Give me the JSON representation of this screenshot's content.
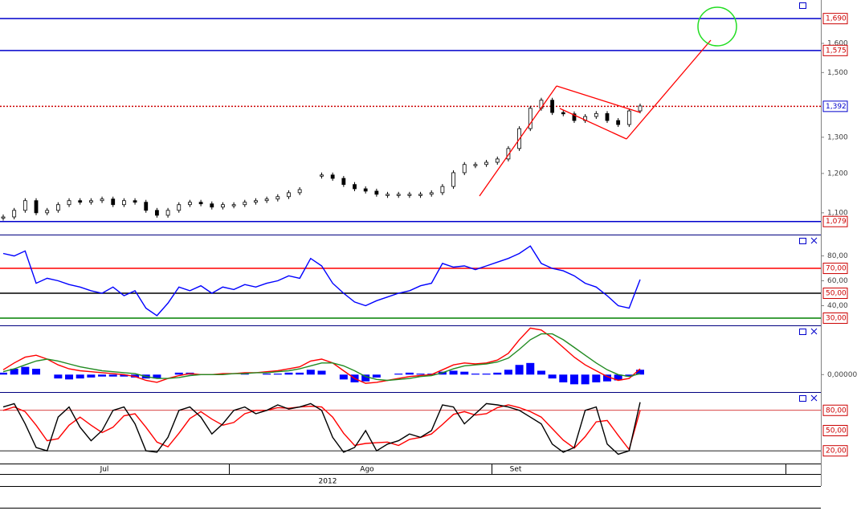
{
  "chart_data": [
    {
      "type": "price",
      "log_scale": true,
      "color": "#000000",
      "values": [
        1.09,
        1.106,
        1.13,
        1.1,
        1.106,
        1.12,
        1.13,
        1.126,
        1.13,
        1.134,
        1.12,
        1.13,
        1.126,
        1.106,
        1.094,
        1.106,
        1.12,
        1.126,
        1.122,
        1.114,
        1.12,
        1.12,
        1.126,
        1.13,
        1.134,
        1.14,
        1.15,
        1.158,
        null,
        1.196,
        1.187,
        1.171,
        1.16,
        1.154,
        1.146,
        1.146,
        1.146,
        1.146,
        1.146,
        1.15,
        1.166,
        1.202,
        1.224,
        1.224,
        1.23,
        1.239,
        1.268,
        1.325,
        1.386,
        1.411,
        1.373,
        1.369,
        1.349,
        1.361,
        1.37,
        1.349,
        1.337,
        1.378,
        1.393
      ],
      "ylim": [
        1.052,
        1.761
      ],
      "yticks": [
        {
          "value": 1.1,
          "label": "1,100"
        },
        {
          "value": 1.2,
          "label": "1,200"
        },
        {
          "value": 1.3,
          "label": "1,300"
        },
        {
          "value": 1.5,
          "label": "1,500"
        },
        {
          "value": 1.6,
          "label": "1,600"
        }
      ],
      "levels": [
        {
          "value": 1.69,
          "label": "1,690",
          "color": "#0000cc",
          "label_color": "#cc0000",
          "style": "solid"
        },
        {
          "value": 1.575,
          "label": "1,575",
          "color": "#0000cc",
          "label_color": "#cc0000",
          "style": "solid"
        },
        {
          "value": 1.392,
          "label": "1,392",
          "color": "#cc0000",
          "label_color": "#0000cc",
          "style": "dotted"
        },
        {
          "value": 1.079,
          "label": "1,079",
          "color": "#0000cc",
          "label_color": "#cc0000",
          "style": "solid"
        }
      ]
    },
    {
      "type": "line",
      "series": [
        {
          "color": "#0000ff",
          "values": [
            82,
            80,
            84,
            58,
            62,
            60,
            57,
            55,
            52,
            50,
            55,
            48,
            52,
            38,
            32,
            42,
            55,
            52,
            56,
            50,
            55,
            53,
            57,
            55,
            58,
            60,
            64,
            62,
            78,
            72,
            58,
            50,
            43,
            40,
            44,
            47,
            50,
            52,
            56,
            58,
            74,
            71,
            72,
            69,
            72,
            75,
            78,
            82,
            88,
            74,
            70,
            68,
            64,
            58,
            55,
            48,
            40,
            38,
            61
          ]
        }
      ],
      "ylim": [
        24.2,
        96.5
      ],
      "yticks": [
        {
          "value": 40,
          "label": "40,00"
        },
        {
          "value": 60,
          "label": "60,00"
        },
        {
          "value": 80,
          "label": "80,00"
        }
      ],
      "levels": [
        {
          "value": 70,
          "label": "70,00",
          "color": "#ff0000",
          "label_color": "#cc0000",
          "style": "solid"
        },
        {
          "value": 50,
          "label": "50,00",
          "color": "#000000",
          "label_color": "#cc0000",
          "style": "solid"
        },
        {
          "value": 30,
          "label": "30,00",
          "color": "#008000",
          "label_color": "#cc0000",
          "style": "solid"
        }
      ]
    },
    {
      "type": "macd",
      "series": [
        {
          "color": "#ff0000",
          "values": [
            0.005,
            0.012,
            0.018,
            0.02,
            0.016,
            0.01,
            0.006,
            0.004,
            0.003,
            0.002,
            0.001,
            0.0,
            -0.002,
            -0.006,
            -0.008,
            -0.004,
            -0.001,
            0.001,
            0.0,
            0.0,
            0.001,
            0.001,
            0.002,
            0.002,
            0.003,
            0.004,
            0.006,
            0.008,
            0.014,
            0.016,
            0.012,
            0.004,
            -0.004,
            -0.009,
            -0.008,
            -0.006,
            -0.004,
            -0.002,
            -0.001,
            0.0,
            0.005,
            0.01,
            0.012,
            0.011,
            0.012,
            0.015,
            0.022,
            0.036,
            0.048,
            0.046,
            0.038,
            0.028,
            0.018,
            0.01,
            0.004,
            -0.002,
            -0.006,
            -0.004,
            0.006
          ]
        },
        {
          "color": "#228b22",
          "values": [
            0.003,
            0.006,
            0.01,
            0.014,
            0.016,
            0.014,
            0.011,
            0.008,
            0.006,
            0.004,
            0.003,
            0.002,
            0.001,
            -0.002,
            -0.004,
            -0.004,
            -0.003,
            -0.001,
            0.0,
            0.0,
            0.0,
            0.001,
            0.001,
            0.002,
            0.002,
            0.003,
            0.004,
            0.006,
            0.009,
            0.012,
            0.012,
            0.009,
            0.004,
            -0.002,
            -0.005,
            -0.006,
            -0.005,
            -0.004,
            -0.002,
            -0.001,
            0.002,
            0.006,
            0.009,
            0.01,
            0.011,
            0.013,
            0.017,
            0.026,
            0.036,
            0.042,
            0.042,
            0.036,
            0.028,
            0.02,
            0.012,
            0.005,
            0.0,
            -0.002,
            0.001
          ]
        }
      ],
      "histogram": {
        "color": "#0000ff",
        "values": [
          0.002,
          0.006,
          0.008,
          0.006,
          0.0,
          -0.004,
          -0.005,
          -0.004,
          -0.003,
          -0.002,
          -0.002,
          -0.002,
          -0.003,
          -0.004,
          -0.004,
          0.0,
          0.002,
          0.002,
          0.0,
          0.0,
          0.001,
          0.0,
          0.001,
          0.0,
          0.001,
          0.001,
          0.002,
          0.002,
          0.005,
          0.004,
          0.0,
          -0.005,
          -0.008,
          -0.007,
          -0.003,
          0.0,
          0.001,
          0.002,
          0.001,
          0.001,
          0.003,
          0.004,
          0.003,
          0.001,
          0.001,
          0.002,
          0.005,
          0.01,
          0.012,
          0.004,
          -0.004,
          -0.008,
          -0.01,
          -0.01,
          -0.008,
          -0.007,
          -0.006,
          -0.002,
          0.005
        ]
      },
      "ylim": [
        -0.018,
        0.05
      ],
      "yticks": [
        {
          "value": 0,
          "label": "0,00000"
        }
      ],
      "levels": []
    },
    {
      "type": "line",
      "series": [
        {
          "color": "#ff0000",
          "values": [
            80,
            85,
            78,
            58,
            35,
            38,
            58,
            70,
            58,
            47,
            55,
            72,
            75,
            55,
            33,
            26,
            46,
            68,
            78,
            67,
            58,
            62,
            75,
            80,
            80,
            84,
            83,
            85,
            86,
            85,
            70,
            46,
            28,
            31,
            32,
            33,
            28,
            37,
            40,
            45,
            59,
            74,
            78,
            73,
            75,
            84,
            88,
            84,
            78,
            70,
            53,
            36,
            24,
            41,
            63,
            65,
            43,
            22,
            80
          ]
        },
        {
          "color": "#000000",
          "values": [
            85,
            90,
            60,
            25,
            20,
            70,
            85,
            55,
            35,
            50,
            80,
            85,
            60,
            20,
            18,
            40,
            80,
            85,
            70,
            45,
            60,
            80,
            85,
            75,
            80,
            88,
            82,
            85,
            90,
            80,
            40,
            18,
            25,
            50,
            20,
            30,
            35,
            45,
            40,
            50,
            88,
            85,
            60,
            75,
            90,
            88,
            85,
            80,
            70,
            60,
            30,
            18,
            25,
            80,
            85,
            30,
            15,
            20,
            92
          ]
        }
      ],
      "ylim": [
        1.2,
        105.9
      ],
      "yticks": [],
      "levels": [
        {
          "value": 80,
          "label": "80,00",
          "color": "#cc0000",
          "label_color": "#cc0000",
          "style": "thin"
        },
        {
          "value": 50,
          "label": "50,00",
          "color": null,
          "label_color": "#cc0000",
          "style": "none"
        },
        {
          "value": 20,
          "label": "20,00",
          "color": "#000000",
          "label_color": "#cc0000",
          "style": "thin"
        }
      ]
    }
  ],
  "time_axis": {
    "labels": [
      "Jul",
      "Ago",
      "Set"
    ],
    "year": "2012"
  }
}
